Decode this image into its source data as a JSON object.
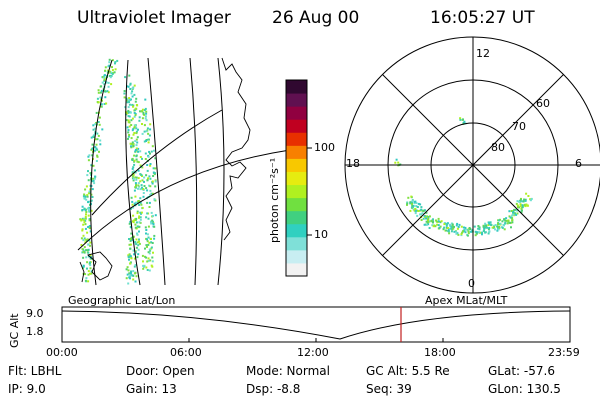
{
  "header": {
    "title": "Ultraviolet Imager",
    "date": "26 Aug 00",
    "time": "16:05:27 UT"
  },
  "colorbar": {
    "unit": "photon cm⁻²s⁻¹",
    "ticks": [
      "100",
      "10"
    ],
    "colors": [
      "#f2f2f2",
      "#c8eef2",
      "#7fe0d8",
      "#30d0c0",
      "#40d080",
      "#70e040",
      "#b0f020",
      "#e6ec10",
      "#f8c800",
      "#f88000",
      "#e83000",
      "#c00020",
      "#900040",
      "#601050",
      "#300830"
    ]
  },
  "polar": {
    "lat_labels": [
      "60",
      "70",
      "80"
    ],
    "mlt_labels": {
      "top": "12",
      "left": "18",
      "right": "6",
      "bottom": "0"
    }
  },
  "map_labels": {
    "left": "Geographic Lat/Lon",
    "right": "Apex MLat/MLT"
  },
  "altitude_plot": {
    "ylabel": "GC Alt",
    "yticks": [
      "9.0",
      "1.8"
    ],
    "xticks": [
      "00:00",
      "06:00",
      "12:00",
      "18:00",
      "23:59"
    ],
    "marker_color": "#c02020"
  },
  "info": {
    "flt": "Flt: LBHL",
    "ip": "IP:  9.0",
    "door": "Door: Open",
    "gain": "Gain: 13",
    "mode": "Mode: Normal",
    "dsp": "Dsp:   -8.8",
    "gcalt": "GC Alt: 5.5 Re",
    "seq": "Seq: 39",
    "glat": "GLat: -57.6",
    "glon": "GLon: 130.5"
  }
}
